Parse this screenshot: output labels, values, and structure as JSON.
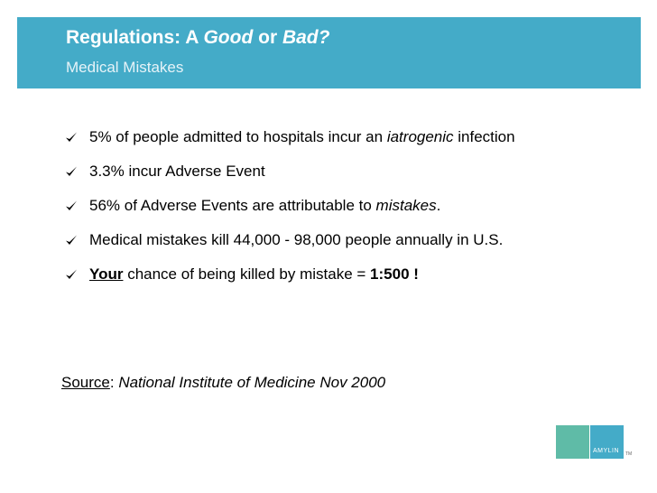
{
  "slide": {
    "title": {
      "prefix": "Regulations:  A ",
      "good": "Good",
      "or": " or ",
      "bad": "Bad?"
    },
    "subtitle": "Medical Mistakes",
    "bullets": [
      {
        "pre": "5% of people admitted to hospitals incur an ",
        "em": "iatrogenic",
        "post": " infection"
      },
      {
        "text": "3.3% incur Adverse Event"
      },
      {
        "pre": "56% of Adverse Events are attributable to ",
        "em": "mistakes",
        "post": "."
      },
      {
        "text": "Medical mistakes kill 44,000 - 98,000 people annually in U.S."
      },
      {
        "strong": "Your",
        "mid": " chance of being killed by mistake = ",
        "value": "1:500 !"
      }
    ],
    "source": {
      "label": "Source",
      "colon": ":  ",
      "text": "National Institute of Medicine Nov 2000"
    },
    "logo": {
      "text": "AMYLIN",
      "tm": "TM",
      "colors": {
        "left": "#5fbba7",
        "right": "#44abc8"
      }
    }
  },
  "colors": {
    "title_band": "#44abc8",
    "check": "#000000"
  }
}
